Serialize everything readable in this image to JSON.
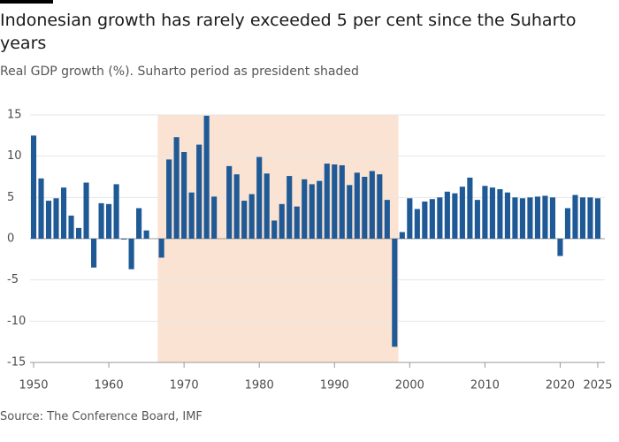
{
  "chart_data": {
    "type": "bar",
    "title": "Indonesian growth has rarely exceeded 5 per cent since the Suharto years",
    "subtitle": "Real GDP growth (%). Suharto period as president shaded",
    "source": "Source: The Conference Board, IMF",
    "x": [
      1950,
      1951,
      1952,
      1953,
      1954,
      1955,
      1956,
      1957,
      1958,
      1959,
      1960,
      1961,
      1962,
      1963,
      1964,
      1965,
      1966,
      1967,
      1968,
      1969,
      1970,
      1971,
      1972,
      1973,
      1974,
      1975,
      1976,
      1977,
      1978,
      1979,
      1980,
      1981,
      1982,
      1983,
      1984,
      1985,
      1986,
      1987,
      1988,
      1989,
      1990,
      1991,
      1992,
      1993,
      1994,
      1995,
      1996,
      1997,
      1998,
      1999,
      2000,
      2001,
      2002,
      2003,
      2004,
      2005,
      2006,
      2007,
      2008,
      2009,
      2010,
      2011,
      2012,
      2013,
      2014,
      2015,
      2016,
      2017,
      2018,
      2019,
      2020,
      2021,
      2022,
      2023,
      2024,
      2025
    ],
    "values": [
      12.5,
      7.3,
      4.6,
      4.9,
      6.2,
      2.8,
      1.3,
      6.8,
      -3.5,
      4.3,
      4.2,
      6.6,
      -0.1,
      -3.7,
      3.7,
      1.0,
      0,
      -2.3,
      9.6,
      12.3,
      10.5,
      5.6,
      11.4,
      14.9,
      5.1,
      0,
      8.8,
      7.8,
      4.6,
      5.4,
      9.9,
      7.9,
      2.2,
      4.2,
      7.6,
      3.9,
      7.2,
      6.6,
      7.0,
      9.1,
      9.0,
      8.9,
      6.5,
      8.0,
      7.5,
      8.2,
      7.8,
      4.7,
      -13.1,
      0.8,
      4.9,
      3.6,
      4.5,
      4.8,
      5.0,
      5.7,
      5.5,
      6.3,
      7.4,
      4.7,
      6.4,
      6.2,
      6.0,
      5.6,
      5.0,
      4.9,
      5.0,
      5.1,
      5.2,
      5.0,
      -2.1,
      3.7,
      5.3,
      5.0,
      5.0,
      4.9
    ],
    "color": "#1f5a96",
    "shade_x": [
      1967,
      1998
    ],
    "shade_color": "#fbe3d3",
    "xlim": [
      1949.5,
      2025.5
    ],
    "xticks": [
      1950,
      1960,
      1970,
      1980,
      1990,
      2000,
      2010,
      2020,
      2025
    ],
    "ylim": [
      -15,
      15
    ],
    "yticks": [
      -15,
      -10,
      -5,
      0,
      5,
      10,
      15
    ],
    "grid": true
  }
}
